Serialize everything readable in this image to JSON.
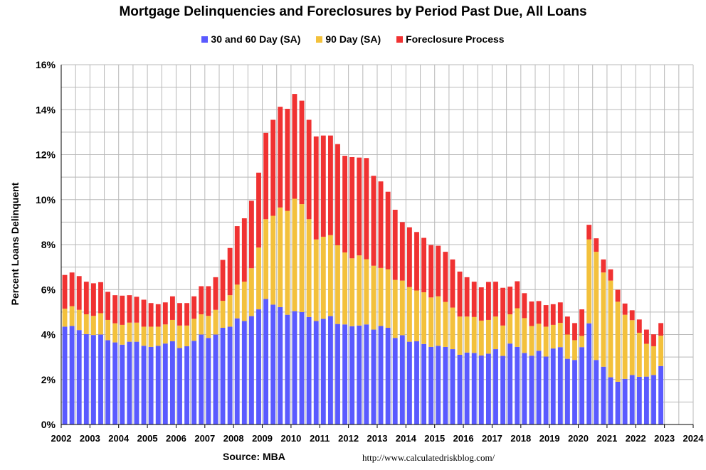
{
  "chart_data": {
    "type": "bar",
    "stacked": true,
    "title": "Mortgage Delinquencies and Foreclosures by Period Past Due, All Loans",
    "ylabel": "Percent Loans Delinquent",
    "xlabel": "",
    "ylim": [
      0,
      16
    ],
    "xlim": [
      2002,
      2024
    ],
    "yticks": [
      "0%",
      "2%",
      "4%",
      "6%",
      "8%",
      "10%",
      "12%",
      "14%",
      "16%"
    ],
    "xticks": [
      "2002",
      "2003",
      "2004",
      "2005",
      "2006",
      "2007",
      "2008",
      "2009",
      "2010",
      "2011",
      "2012",
      "2013",
      "2014",
      "2015",
      "2016",
      "2017",
      "2018",
      "2019",
      "2020",
      "2021",
      "2022",
      "2023",
      "2024"
    ],
    "grid": true,
    "legend_position": "top",
    "x": [
      2002.0,
      2002.25,
      2002.5,
      2002.75,
      2003.0,
      2003.25,
      2003.5,
      2003.75,
      2004.0,
      2004.25,
      2004.5,
      2004.75,
      2005.0,
      2005.25,
      2005.5,
      2005.75,
      2006.0,
      2006.25,
      2006.5,
      2006.75,
      2007.0,
      2007.25,
      2007.5,
      2007.75,
      2008.0,
      2008.25,
      2008.5,
      2008.75,
      2009.0,
      2009.25,
      2009.5,
      2009.75,
      2010.0,
      2010.25,
      2010.5,
      2010.75,
      2011.0,
      2011.25,
      2011.5,
      2011.75,
      2012.0,
      2012.25,
      2012.5,
      2012.75,
      2013.0,
      2013.25,
      2013.5,
      2013.75,
      2014.0,
      2014.25,
      2014.5,
      2014.75,
      2015.0,
      2015.25,
      2015.5,
      2015.75,
      2016.0,
      2016.25,
      2016.5,
      2016.75,
      2017.0,
      2017.25,
      2017.5,
      2017.75,
      2018.0,
      2018.25,
      2018.5,
      2018.75,
      2019.0,
      2019.25,
      2019.5,
      2019.75,
      2020.0,
      2020.25,
      2020.5,
      2020.75,
      2021.0,
      2021.25,
      2021.5,
      2021.75,
      2022.0,
      2022.25,
      2022.5,
      2022.75
    ],
    "series": [
      {
        "name": "30 and 60 Day (SA)",
        "color": "#5a5aff",
        "values": [
          4.35,
          4.38,
          4.2,
          4.02,
          3.98,
          4.0,
          3.75,
          3.65,
          3.55,
          3.68,
          3.68,
          3.5,
          3.45,
          3.5,
          3.6,
          3.7,
          3.4,
          3.48,
          3.72,
          4.0,
          3.85,
          4.0,
          4.3,
          4.35,
          4.72,
          4.6,
          4.82,
          5.12,
          5.58,
          5.33,
          5.22,
          4.88,
          5.04,
          5.0,
          4.78,
          4.6,
          4.7,
          4.82,
          4.47,
          4.45,
          4.37,
          4.4,
          4.45,
          4.22,
          4.38,
          4.3,
          3.85,
          3.97,
          3.68,
          3.7,
          3.58,
          3.45,
          3.5,
          3.45,
          3.35,
          3.1,
          3.2,
          3.18,
          3.07,
          3.15,
          3.35,
          3.05,
          3.6,
          3.45,
          3.18,
          3.06,
          3.28,
          3.02,
          3.38,
          3.44,
          2.92,
          2.87,
          3.44,
          4.5,
          2.87,
          2.57,
          2.1,
          1.9,
          2.03,
          2.2,
          2.12,
          2.13,
          2.2,
          2.6
        ]
      },
      {
        "name": "90 Day (SA)",
        "color": "#f3c13c",
        "values": [
          0.8,
          0.88,
          0.9,
          0.88,
          0.85,
          0.95,
          0.9,
          0.85,
          0.88,
          0.85,
          0.85,
          0.85,
          0.9,
          0.85,
          0.85,
          0.95,
          1.0,
          0.92,
          0.98,
          0.9,
          0.98,
          1.1,
          1.2,
          1.4,
          1.5,
          1.75,
          2.13,
          2.75,
          3.55,
          3.95,
          4.43,
          4.62,
          5.0,
          4.8,
          4.35,
          3.63,
          3.65,
          3.6,
          3.5,
          3.2,
          3.02,
          3.12,
          2.9,
          2.84,
          2.58,
          2.6,
          2.58,
          2.43,
          2.43,
          2.26,
          2.3,
          2.2,
          2.2,
          2.0,
          1.85,
          1.7,
          1.6,
          1.6,
          1.55,
          1.5,
          1.45,
          1.35,
          1.3,
          1.72,
          1.55,
          1.32,
          1.2,
          1.33,
          1.05,
          1.08,
          1.08,
          0.88,
          0.5,
          3.73,
          4.81,
          4.19,
          4.3,
          3.56,
          2.85,
          2.44,
          1.96,
          1.46,
          1.28,
          1.35
        ]
      },
      {
        "name": "Foreclosure Process",
        "color": "#f03232",
        "values": [
          1.5,
          1.5,
          1.5,
          1.45,
          1.45,
          1.38,
          1.25,
          1.25,
          1.3,
          1.22,
          1.15,
          1.2,
          1.05,
          1.0,
          0.98,
          1.05,
          1.0,
          1.0,
          1.0,
          1.25,
          1.32,
          1.45,
          1.82,
          2.1,
          2.6,
          2.82,
          3.0,
          3.33,
          3.84,
          4.27,
          4.48,
          4.54,
          4.66,
          4.6,
          4.42,
          4.58,
          4.5,
          4.43,
          4.5,
          4.3,
          4.5,
          4.35,
          4.5,
          4.0,
          3.85,
          3.45,
          3.12,
          2.6,
          2.66,
          2.6,
          2.42,
          2.33,
          2.25,
          2.23,
          2.14,
          2.0,
          1.75,
          1.57,
          1.48,
          1.69,
          1.55,
          1.68,
          1.23,
          1.2,
          1.11,
          1.09,
          1.01,
          0.96,
          0.92,
          0.91,
          0.8,
          0.76,
          1.18,
          0.65,
          0.6,
          0.58,
          0.5,
          0.53,
          0.5,
          0.44,
          0.59,
          0.63,
          0.53,
          0.56
        ]
      }
    ]
  },
  "source": "Source: MBA",
  "url": "http://www.calculatedriskblog.com/"
}
